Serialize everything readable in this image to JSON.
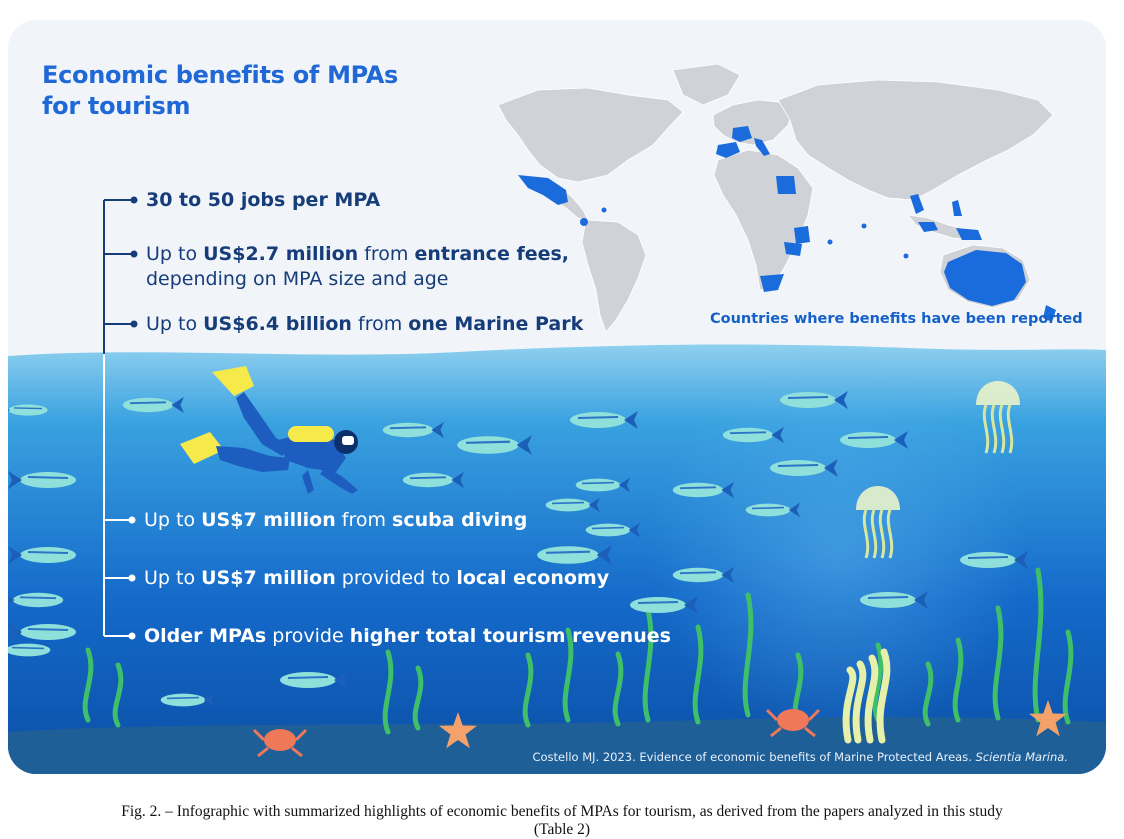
{
  "infographic": {
    "title_line1": "Economic benefits of MPAs",
    "title_line2": "for tourism",
    "map_caption": "Countries where benefits have been reported",
    "bullets_upper": [
      {
        "parts": [
          {
            "t": "30 to 50 jobs per MPA",
            "b": true
          }
        ]
      },
      {
        "parts": [
          {
            "t": "Up to ",
            "b": false
          },
          {
            "t": "US$2.7 million",
            "b": true
          },
          {
            "t": " from ",
            "b": false
          },
          {
            "t": "entrance fees,",
            "b": true
          }
        ],
        "second_line": "depending on MPA size and age"
      },
      {
        "parts": [
          {
            "t": "Up to ",
            "b": false
          },
          {
            "t": "US$6.4 billion",
            "b": true
          },
          {
            "t": " from ",
            "b": false
          },
          {
            "t": "one Marine Park",
            "b": true
          }
        ]
      }
    ],
    "bullets_lower": [
      {
        "parts": [
          {
            "t": "Up to ",
            "b": false
          },
          {
            "t": "US$7 million",
            "b": true
          },
          {
            "t": " from ",
            "b": false
          },
          {
            "t": "scuba diving",
            "b": true
          }
        ]
      },
      {
        "parts": [
          {
            "t": "Up to ",
            "b": false
          },
          {
            "t": "US$7 million",
            "b": true
          },
          {
            "t": " provided to ",
            "b": false
          },
          {
            "t": "local economy",
            "b": true
          }
        ]
      },
      {
        "parts": [
          {
            "t": "Older MPAs",
            "b": true
          },
          {
            "t": " provide ",
            "b": false
          },
          {
            "t": "higher total tourism revenues",
            "b": true
          }
        ]
      }
    ],
    "credit_text": "Costello MJ. 2023. Evidence of economic benefits of Marine Protected Areas. ",
    "credit_journal": "Scientia Marina."
  },
  "figure_caption": {
    "line1": "Fig. 2. – Infographic with summarized highlights of economic benefits of MPAs for tourism, as derived from the papers analyzed in this study",
    "line2": "(Table 2)"
  },
  "colors": {
    "title_blue": "#1f68d6",
    "land_grey": "#cfd2d6",
    "highlight_blue": "#1a6bdc",
    "sea_top": "#8fd0ef",
    "sea_bottom": "#0b4fa6",
    "fish": "#8fe0da",
    "seaweed": "#3fbf6a"
  },
  "icons": [
    "world-map",
    "scuba-diver-illustration",
    "fish-icon",
    "jellyfish-icon",
    "crab-icon",
    "starfish-icon",
    "seaweed-icon"
  ]
}
